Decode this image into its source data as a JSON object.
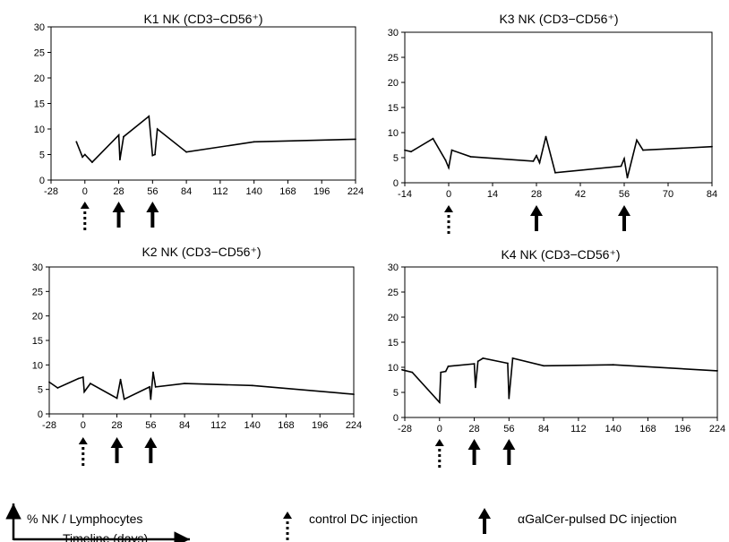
{
  "legend": {
    "y_axis_label": "% NK / Lymphocytes",
    "x_axis_label": "Timeline (days)",
    "control_label": "control DC injection",
    "pulsed_label": "αGalCer-pulsed DC injection"
  },
  "chart_data": [
    {
      "type": "line",
      "title": "K1 NK (CD3−CD56⁺)",
      "xlabel": "",
      "ylabel": "",
      "xlim": [
        -28,
        224
      ],
      "ylim": [
        0,
        30
      ],
      "xticks": [
        -28,
        0,
        28,
        56,
        84,
        112,
        140,
        168,
        196,
        224
      ],
      "yticks": [
        0,
        5,
        10,
        15,
        20,
        25,
        30
      ],
      "grid": false,
      "series": [
        {
          "x": [
            -7,
            -2,
            0,
            6,
            28,
            29,
            32,
            53,
            56,
            58,
            60,
            84,
            140,
            224
          ],
          "y": [
            7.5,
            4.5,
            5,
            3.5,
            8.8,
            4,
            8.5,
            12.5,
            4.8,
            5,
            10,
            5.5,
            7.5,
            8
          ]
        }
      ],
      "control_injections": [
        0
      ],
      "pulsed_injections": [
        28,
        56
      ]
    },
    {
      "type": "line",
      "title": "K3  NK (CD3−CD56⁺)",
      "xlabel": "",
      "ylabel": "",
      "xlim": [
        -14,
        84
      ],
      "ylim": [
        0,
        30
      ],
      "xticks": [
        -14,
        0,
        14,
        28,
        42,
        56,
        70,
        84
      ],
      "yticks": [
        0,
        5,
        10,
        15,
        20,
        25,
        30
      ],
      "grid": false,
      "series": [
        {
          "x": [
            -14,
            -12,
            -5,
            -1,
            0,
            1,
            7,
            27,
            28,
            29,
            31,
            34,
            55,
            56,
            57,
            60,
            62,
            84
          ],
          "y": [
            6.5,
            6.2,
            8.8,
            4.5,
            3,
            6.5,
            5.2,
            4.3,
            5.4,
            4,
            9.2,
            2,
            3.3,
            4.8,
            1,
            8.5,
            6.5,
            7.2
          ]
        }
      ],
      "control_injections": [
        0
      ],
      "pulsed_injections": [
        28,
        56
      ]
    },
    {
      "type": "line",
      "title": "K2  NK (CD3−CD56⁺)",
      "xlabel": "",
      "ylabel": "",
      "xlim": [
        -28,
        224
      ],
      "ylim": [
        0,
        30
      ],
      "xticks": [
        -28,
        0,
        28,
        56,
        84,
        112,
        140,
        168,
        196,
        224
      ],
      "yticks": [
        0,
        5,
        10,
        15,
        20,
        25,
        30
      ],
      "grid": false,
      "series": [
        {
          "x": [
            -28,
            -21,
            -4,
            0,
            1,
            6,
            28,
            31,
            34,
            55,
            56,
            58,
            60,
            84,
            140,
            224
          ],
          "y": [
            6.5,
            5.3,
            7.2,
            7.5,
            4.5,
            6.2,
            3.2,
            7,
            3,
            5.5,
            3,
            8.5,
            5.5,
            6.2,
            5.8,
            4
          ]
        }
      ],
      "control_injections": [
        0
      ],
      "pulsed_injections": [
        28,
        56
      ]
    },
    {
      "type": "line",
      "title": "K4  NK (CD3−CD56⁺)",
      "xlabel": "",
      "ylabel": "",
      "xlim": [
        -28,
        224
      ],
      "ylim": [
        0,
        30
      ],
      "xticks": [
        -28,
        0,
        28,
        56,
        84,
        112,
        140,
        168,
        196,
        224
      ],
      "yticks": [
        0,
        5,
        10,
        15,
        20,
        25,
        30
      ],
      "grid": false,
      "series": [
        {
          "x": [
            -34,
            -22,
            0,
            1,
            5,
            7,
            28,
            29,
            31,
            35,
            55,
            56,
            59,
            84,
            140,
            224
          ],
          "y": [
            9.5,
            9,
            3,
            9,
            9.2,
            10.2,
            10.7,
            6,
            11.2,
            11.8,
            10.8,
            3.8,
            11.8,
            10.3,
            10.5,
            9.3
          ]
        }
      ],
      "control_injections": [
        0
      ],
      "pulsed_injections": [
        28,
        56
      ]
    }
  ]
}
